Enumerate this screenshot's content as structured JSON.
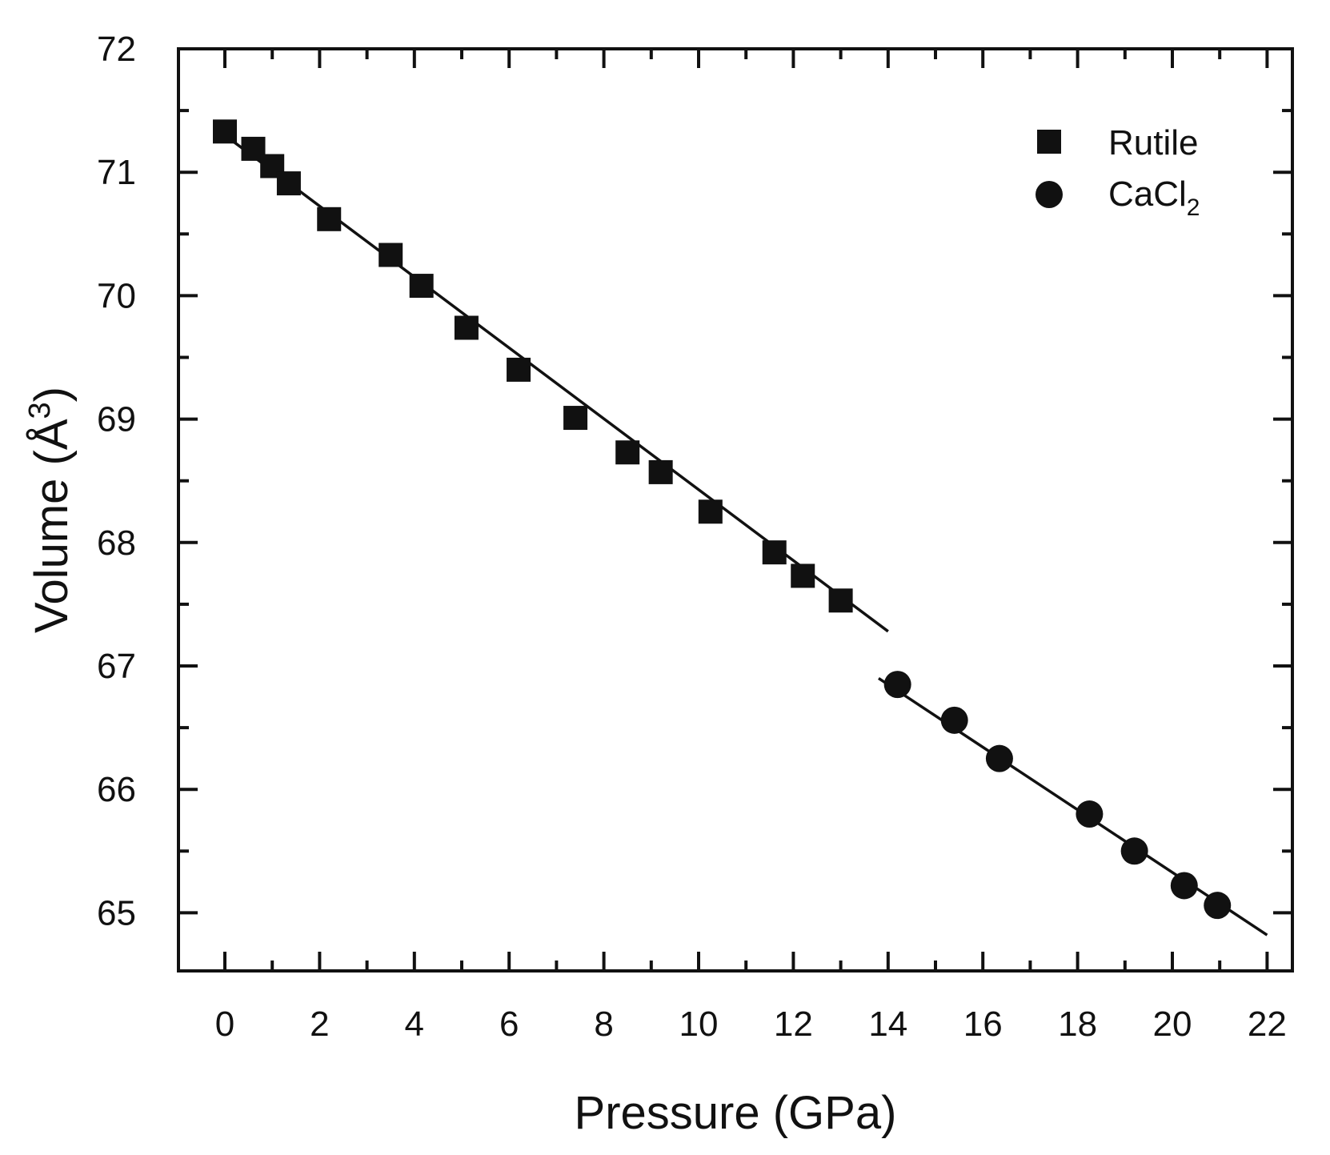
{
  "chart_data": {
    "type": "scatter",
    "xlabel": "Pressure (GPa)",
    "ylabel": "Volume (Å",
    "ylabel_superscript": "3",
    "ylabel_close": ")",
    "xlim": [
      -1,
      22.5
    ],
    "ylim": [
      64.5,
      72
    ],
    "x_ticks": [
      0,
      2,
      4,
      6,
      8,
      10,
      12,
      14,
      16,
      18,
      20,
      22
    ],
    "x_ticklabels": [
      "0",
      "2",
      "4",
      "6",
      "8",
      "10",
      "12",
      "14",
      "16",
      "18",
      "20",
      "22"
    ],
    "x_minor_step": 1,
    "y_ticks": [
      65,
      66,
      67,
      68,
      69,
      70,
      71,
      72
    ],
    "y_ticklabels": [
      "65",
      "66",
      "67",
      "68",
      "69",
      "70",
      "71",
      "72"
    ],
    "y_minor_step": 0.5,
    "legend": {
      "position": "top-right",
      "entries": [
        {
          "label": "Rutile",
          "marker": "square"
        },
        {
          "label": "CaCl",
          "subscript": "2",
          "marker": "circle"
        }
      ]
    },
    "series": [
      {
        "name": "Rutile",
        "marker": "square",
        "x": [
          0.0,
          0.6,
          1.0,
          1.35,
          2.2,
          3.5,
          4.15,
          5.1,
          6.2,
          7.4,
          8.5,
          9.2,
          10.25,
          11.6,
          12.2,
          13.0
        ],
        "y": [
          71.33,
          71.19,
          71.05,
          70.91,
          70.62,
          70.33,
          70.08,
          69.74,
          69.4,
          69.01,
          68.73,
          68.57,
          68.25,
          67.92,
          67.73,
          67.53
        ]
      },
      {
        "name": "CaCl2",
        "marker": "circle",
        "x": [
          14.2,
          15.4,
          16.35,
          18.25,
          19.2,
          20.25,
          20.95
        ],
        "y": [
          66.85,
          66.56,
          66.25,
          65.8,
          65.5,
          65.22,
          65.06
        ]
      }
    ],
    "fit_lines": [
      {
        "name": "Rutile fit",
        "x": [
          0.0,
          14.0
        ],
        "y": [
          71.3,
          67.28
        ]
      },
      {
        "name": "CaCl2 fit",
        "x": [
          13.8,
          22.0
        ],
        "y": [
          66.9,
          64.82
        ]
      }
    ],
    "colors": {
      "marker": "#111111",
      "line": "#111111",
      "background": "#ffffff"
    }
  }
}
